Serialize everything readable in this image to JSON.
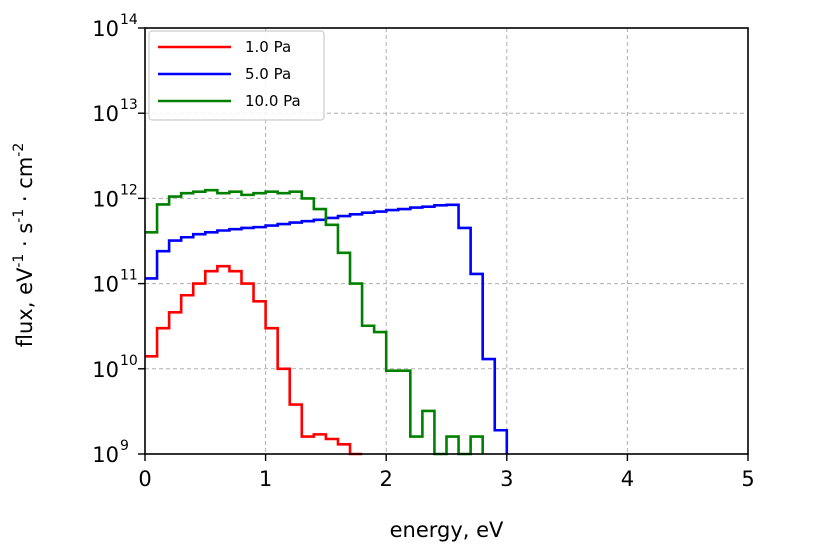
{
  "chart_data": {
    "type": "line",
    "step": true,
    "xlabel": "energy, eV",
    "ylabel": "flux, eV^{-1} · s^{-1} · cm^{-2}",
    "xlim": [
      0,
      5
    ],
    "ylim_exp": [
      9,
      14
    ],
    "yscale": "log",
    "grid": true,
    "legend_position": "top-left",
    "x_ticks": [
      "0",
      "1",
      "2",
      "3",
      "4",
      "5"
    ],
    "y_tick_base": "10",
    "y_tick_exponents": [
      "9",
      "10",
      "11",
      "12",
      "13",
      "14"
    ],
    "bin_edges": [
      0,
      0.1,
      0.2,
      0.3,
      0.4,
      0.5,
      0.6,
      0.7,
      0.8,
      0.9,
      1.0,
      1.1,
      1.2,
      1.3,
      1.4,
      1.5,
      1.6,
      1.7,
      1.8,
      1.9,
      2.0,
      2.1,
      2.2,
      2.3,
      2.4,
      2.5,
      2.6,
      2.7,
      2.8,
      2.9,
      3.0
    ],
    "series": [
      {
        "name": "1.0 Pa",
        "color": "#ff0000",
        "values": [
          14000000000.0,
          30000000000.0,
          46000000000.0,
          73000000000.0,
          100000000000.0,
          140000000000.0,
          160000000000.0,
          140000000000.0,
          100000000000.0,
          62000000000.0,
          30000000000.0,
          10000000000.0,
          3800000000.0,
          1600000000.0,
          1700000000.0,
          1500000000.0,
          1300000000.0,
          1000000000.0
        ]
      },
      {
        "name": "5.0 Pa",
        "color": "#0000ff",
        "values": [
          115000000000.0,
          240000000000.0,
          320000000000.0,
          350000000000.0,
          380000000000.0,
          400000000000.0,
          420000000000.0,
          435000000000.0,
          450000000000.0,
          460000000000.0,
          480000000000.0,
          500000000000.0,
          520000000000.0,
          540000000000.0,
          560000000000.0,
          590000000000.0,
          620000000000.0,
          650000000000.0,
          680000000000.0,
          700000000000.0,
          730000000000.0,
          750000000000.0,
          780000000000.0,
          800000000000.0,
          830000000000.0,
          840000000000.0,
          450000000000.0,
          130000000000.0,
          13000000000.0,
          1900000000.0
        ]
      },
      {
        "name": "10.0 Pa",
        "color": "#008000",
        "values": [
          400000000000.0,
          850000000000.0,
          1050000000000.0,
          1150000000000.0,
          1200000000000.0,
          1250000000000.0,
          1150000000000.0,
          1200000000000.0,
          1100000000000.0,
          1150000000000.0,
          1200000000000.0,
          1150000000000.0,
          1200000000000.0,
          1000000000000.0,
          750000000000.0,
          490000000000.0,
          230000000000.0,
          100000000000.0,
          32000000000.0,
          27000000000.0,
          9500000000.0,
          9500000000.0,
          1600000000.0,
          3200000000.0,
          1000000000.0,
          1600000000.0,
          1000000000.0,
          1600000000.0
        ]
      }
    ]
  }
}
